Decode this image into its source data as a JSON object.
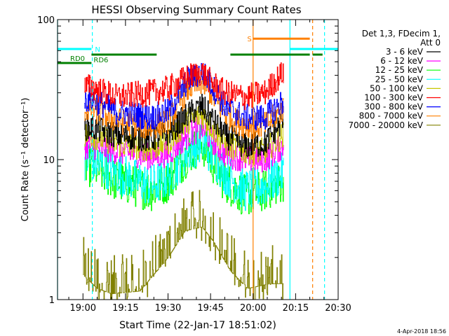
{
  "chart_data": {
    "type": "line",
    "title": "HESSI Observing Summary Count Rates",
    "xlabel": "Start Time (22-Jan-17 18:51:02)",
    "ylabel": "Count Rate (s⁻¹ detector⁻¹)",
    "yscale": "log",
    "ylim": [
      1,
      100
    ],
    "xlim_min": [
      -8.97,
      90
    ],
    "x_units": "minutes after 19:00 UT",
    "y_ticks": [
      {
        "value": 1,
        "label": "1"
      },
      {
        "value": 10,
        "label": "10"
      },
      {
        "value": 100,
        "label": "100"
      }
    ],
    "x_ticks": [
      {
        "value": 0,
        "label": "19:00"
      },
      {
        "value": 15,
        "label": "19:15"
      },
      {
        "value": 30,
        "label": "19:30"
      },
      {
        "value": 45,
        "label": "19:45"
      },
      {
        "value": 60,
        "label": "20:00"
      },
      {
        "value": 75,
        "label": "20:15"
      },
      {
        "value": 90,
        "label": "20:30"
      }
    ],
    "legend_title": [
      "Det 1,3, FDecim 1,",
      "Att 0"
    ],
    "legend_position": "right",
    "series": [
      {
        "name": "3 - 6 keV",
        "color": "#000000",
        "x": [
          3,
          12,
          24,
          30,
          37,
          42,
          45,
          50,
          57,
          64,
          70.5
        ],
        "y": [
          17,
          15,
          14,
          15.5,
          21,
          24,
          20,
          15,
          12.5,
          13,
          19
        ]
      },
      {
        "name": "6 - 12 keV",
        "color": "#ff00ff",
        "x": [
          3,
          12,
          24,
          30,
          37,
          42,
          45,
          50,
          57,
          64,
          70.5
        ],
        "y": [
          12.5,
          11.5,
          10.5,
          11,
          15,
          17,
          14,
          11,
          10,
          10,
          12.5
        ]
      },
      {
        "name": "12 - 25 keV",
        "color": "#00ff00",
        "x": [
          3,
          12,
          24,
          30,
          37,
          42,
          45,
          50,
          57,
          64,
          70.5
        ],
        "y": [
          9,
          7,
          6,
          7,
          11,
          13,
          10,
          7,
          5.5,
          6,
          7
        ]
      },
      {
        "name": "25 - 50 keV",
        "color": "#00ffff",
        "x": [
          3,
          12,
          24,
          30,
          37,
          42,
          45,
          50,
          57,
          64,
          70.5
        ],
        "y": [
          10,
          8,
          6.5,
          7.5,
          11.5,
          13.5,
          11,
          8,
          6,
          6.5,
          8
        ]
      },
      {
        "name": "50 - 100 keV",
        "color": "#c8c800",
        "x": [
          3,
          12,
          24,
          30,
          37,
          42,
          45,
          50,
          57,
          64,
          70.5
        ],
        "y": [
          15,
          13,
          12,
          13.5,
          19,
          21,
          17.5,
          13,
          11.5,
          11.5,
          15
        ]
      },
      {
        "name": "100 - 300 keV",
        "color": "#ff0000",
        "x": [
          3,
          12,
          24,
          30,
          37,
          42,
          45,
          50,
          57,
          64,
          70.5
        ],
        "y": [
          33,
          28,
          30,
          32,
          39,
          42,
          36,
          30,
          28,
          30,
          42
        ]
      },
      {
        "name": "300 - 800 keV",
        "color": "#0000ff",
        "x": [
          3,
          12,
          24,
          30,
          37,
          42,
          45,
          50,
          57,
          64,
          70.5
        ],
        "y": [
          27,
          22,
          20,
          22,
          37,
          42,
          35,
          24,
          20,
          20,
          26
        ]
      },
      {
        "name": "800 - 7000 keV",
        "color": "#ff8000",
        "x": [
          3,
          12,
          24,
          30,
          37,
          42,
          45,
          50,
          57,
          64,
          70.5
        ],
        "y": [
          23,
          19,
          17,
          19,
          32,
          36,
          30,
          21,
          17.5,
          17.5,
          23
        ]
      },
      {
        "name": "7000 - 20000 keV",
        "color": "#808000",
        "x": [
          0,
          5,
          10,
          20,
          30,
          36,
          42,
          46,
          52,
          58,
          66
        ],
        "y": [
          1.5,
          1.2,
          1.1,
          1.15,
          2,
          3.1,
          3.3,
          2.6,
          1.6,
          1.2,
          1.3
        ]
      }
    ],
    "flag_lines": [
      {
        "label": "N",
        "color": "#00ffff",
        "segments": [
          [
            -8.97,
            3
          ],
          [
            73,
            90
          ]
        ],
        "level_frac": 0.105
      },
      {
        "label": "S",
        "color": "#ff8000",
        "segments": [
          [
            60,
            80
          ]
        ],
        "level_frac": 0.068
      },
      {
        "label": "RD0",
        "color": "#008000",
        "segments": [
          [
            -8.97,
            3
          ]
        ],
        "level_frac": 0.155
      },
      {
        "label": "RD6",
        "color": "#008000",
        "segments": [
          [
            3,
            26
          ],
          [
            52,
            80
          ],
          [
            81,
            84.5
          ]
        ],
        "level_frac": 0.125
      }
    ],
    "vertical_markers": [
      {
        "x": -8.97,
        "color": "#00ffff",
        "style": "solid"
      },
      {
        "x": 3.3,
        "color": "#00ffff",
        "style": "dashed"
      },
      {
        "x": 73,
        "color": "#00ffff",
        "style": "solid"
      },
      {
        "x": 85.2,
        "color": "#00ffff",
        "style": "dashed"
      },
      {
        "x": 60,
        "color": "#ff8000",
        "style": "solid"
      },
      {
        "x": 81,
        "color": "#ff8000",
        "style": "dashed"
      }
    ],
    "data_gap_min": [
      71,
      90
    ]
  },
  "footer": {
    "date": "4-Apr-2018 18:56"
  }
}
